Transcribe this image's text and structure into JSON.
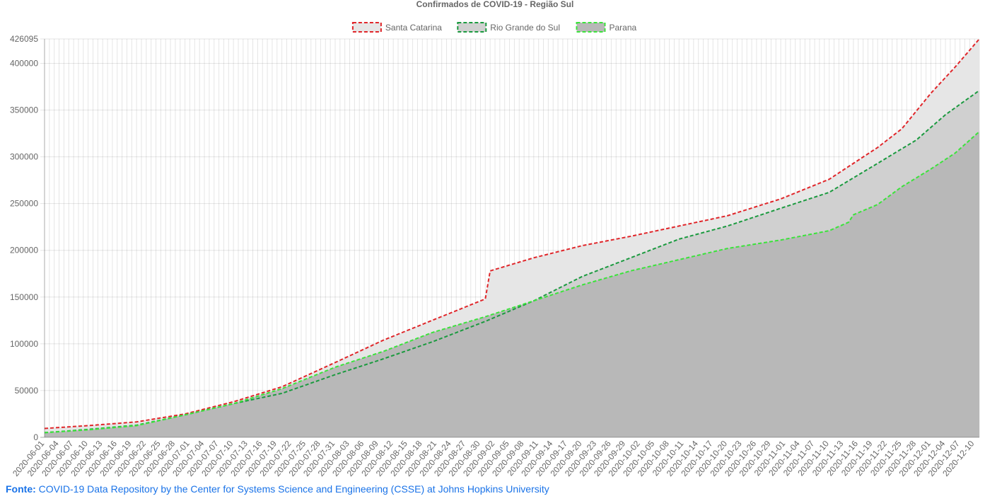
{
  "chart_data": {
    "type": "area",
    "title": "Confirmados de COVID-19 - Região Sul",
    "ylim": [
      0,
      426095
    ],
    "y_ticks": [
      0,
      50000,
      100000,
      150000,
      200000,
      250000,
      300000,
      350000,
      400000,
      426095
    ],
    "x_start": "2020-06-01",
    "x_end": "2020-12-11",
    "x_tick_labels": [
      "2020-06-01",
      "2020-06-04",
      "2020-06-07",
      "2020-06-10",
      "2020-06-13",
      "2020-06-16",
      "2020-06-19",
      "2020-06-22",
      "2020-06-25",
      "2020-06-28",
      "2020-07-01",
      "2020-07-04",
      "2020-07-07",
      "2020-07-10",
      "2020-07-13",
      "2020-07-16",
      "2020-07-19",
      "2020-07-22",
      "2020-07-25",
      "2020-07-28",
      "2020-07-31",
      "2020-08-03",
      "2020-08-06",
      "2020-08-09",
      "2020-08-12",
      "2020-08-15",
      "2020-08-18",
      "2020-08-21",
      "2020-08-24",
      "2020-08-27",
      "2020-08-30",
      "2020-09-02",
      "2020-09-05",
      "2020-09-08",
      "2020-09-11",
      "2020-09-14",
      "2020-09-17",
      "2020-09-20",
      "2020-09-23",
      "2020-09-26",
      "2020-09-29",
      "2020-10-02",
      "2020-10-05",
      "2020-10-08",
      "2020-10-11",
      "2020-10-14",
      "2020-10-17",
      "2020-10-20",
      "2020-10-23",
      "2020-10-26",
      "2020-10-29",
      "2020-11-01",
      "2020-11-04",
      "2020-11-07",
      "2020-11-10",
      "2020-11-13",
      "2020-11-16",
      "2020-11-19",
      "2020-11-22",
      "2020-11-25",
      "2020-11-28",
      "2020-12-01",
      "2020-12-04",
      "2020-12-07",
      "2020-12-10"
    ],
    "grid": true,
    "legend_position": "top",
    "series": [
      {
        "name": "Santa Catarina",
        "color": "#e0262a",
        "fill": "#e6e6e6",
        "points": [
          [
            "2020-06-01",
            9500
          ],
          [
            "2020-06-10",
            12500
          ],
          [
            "2020-06-20",
            16500
          ],
          [
            "2020-06-30",
            25000
          ],
          [
            "2020-07-10",
            38000
          ],
          [
            "2020-07-20",
            54000
          ],
          [
            "2020-07-31",
            80000
          ],
          [
            "2020-08-10",
            104000
          ],
          [
            "2020-08-20",
            125000
          ],
          [
            "2020-08-31",
            148000
          ],
          [
            "2020-09-01",
            178000
          ],
          [
            "2020-09-10",
            192000
          ],
          [
            "2020-09-20",
            205000
          ],
          [
            "2020-09-30",
            215000
          ],
          [
            "2020-10-10",
            226000
          ],
          [
            "2020-10-20",
            237000
          ],
          [
            "2020-10-31",
            255000
          ],
          [
            "2020-11-10",
            276000
          ],
          [
            "2020-11-20",
            310000
          ],
          [
            "2020-11-25",
            330000
          ],
          [
            "2020-12-01",
            368000
          ],
          [
            "2020-12-06",
            396000
          ],
          [
            "2020-12-11",
            426095
          ]
        ]
      },
      {
        "name": "Rio Grande do Sul",
        "color": "#1b9a3f",
        "fill": "#d0d0d0",
        "points": [
          [
            "2020-06-01",
            5000
          ],
          [
            "2020-06-10",
            8500
          ],
          [
            "2020-06-20",
            13000
          ],
          [
            "2020-06-30",
            24000
          ],
          [
            "2020-07-10",
            36000
          ],
          [
            "2020-07-20",
            47000
          ],
          [
            "2020-07-31",
            67000
          ],
          [
            "2020-08-10",
            84000
          ],
          [
            "2020-08-20",
            102000
          ],
          [
            "2020-08-31",
            124000
          ],
          [
            "2020-09-10",
            146000
          ],
          [
            "2020-09-20",
            172000
          ],
          [
            "2020-09-30",
            192000
          ],
          [
            "2020-10-10",
            212000
          ],
          [
            "2020-10-20",
            226000
          ],
          [
            "2020-10-31",
            245000
          ],
          [
            "2020-11-10",
            262000
          ],
          [
            "2020-11-20",
            293000
          ],
          [
            "2020-11-28",
            318000
          ],
          [
            "2020-12-04",
            345000
          ],
          [
            "2020-12-11",
            371000
          ]
        ]
      },
      {
        "name": "Parana",
        "color": "#3be33b",
        "fill": "#b8b8b8",
        "points": [
          [
            "2020-06-01",
            5000
          ],
          [
            "2020-06-10",
            8000
          ],
          [
            "2020-06-20",
            12500
          ],
          [
            "2020-06-30",
            24000
          ],
          [
            "2020-07-10",
            36000
          ],
          [
            "2020-07-20",
            52000
          ],
          [
            "2020-07-31",
            75000
          ],
          [
            "2020-08-10",
            92000
          ],
          [
            "2020-08-20",
            112000
          ],
          [
            "2020-08-31",
            129000
          ],
          [
            "2020-09-10",
            146000
          ],
          [
            "2020-09-20",
            163000
          ],
          [
            "2020-09-30",
            178000
          ],
          [
            "2020-10-10",
            190000
          ],
          [
            "2020-10-20",
            202000
          ],
          [
            "2020-10-31",
            211000
          ],
          [
            "2020-11-10",
            221000
          ],
          [
            "2020-11-14",
            230000
          ],
          [
            "2020-11-15",
            238000
          ],
          [
            "2020-11-20",
            249000
          ],
          [
            "2020-11-25",
            268000
          ],
          [
            "2020-12-01",
            287000
          ],
          [
            "2020-12-06",
            304000
          ],
          [
            "2020-12-11",
            327000
          ]
        ]
      }
    ]
  },
  "source": {
    "label": "Fonte:",
    "text": "COVID-19 Data Repository by the Center for Systems Science and Engineering (CSSE) at Johns Hopkins University"
  }
}
